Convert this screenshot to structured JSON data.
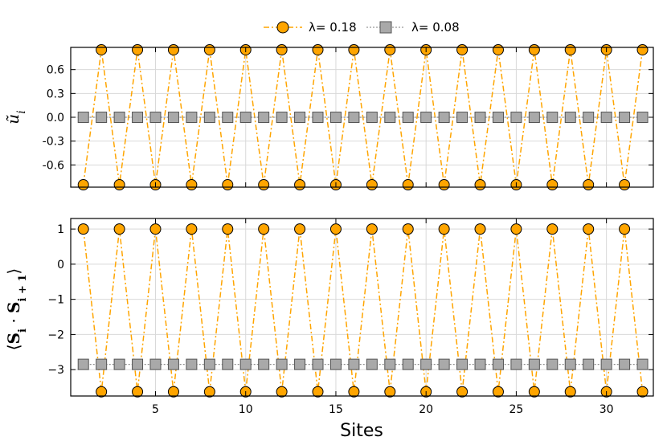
{
  "legend": {
    "entries": [
      {
        "label": "λ= 0.18",
        "color": "#FFA500",
        "marker": "circle",
        "line": "dashdot"
      },
      {
        "label": "λ= 0.08",
        "color": "#A9A9A9",
        "marker": "square",
        "line": "dotted"
      }
    ],
    "placement": "top-center"
  },
  "chart_data": [
    {
      "type": "line",
      "ylabel": "ũ_i",
      "xlabel": "",
      "xlim": [
        0.3,
        32.6
      ],
      "ylim": [
        -0.88,
        0.88
      ],
      "yticks": [
        -0.6,
        -0.3,
        0.0,
        0.3,
        0.6
      ],
      "ytick_labels": [
        "-0.6",
        "-0.3",
        "0.0",
        "0.3",
        "0.6"
      ],
      "xticks": [
        5,
        10,
        15,
        20,
        25,
        30
      ],
      "grid": true,
      "series": [
        {
          "name": "λ= 0.18",
          "color": "#FFA500",
          "marker": "circle",
          "x": [
            1,
            2,
            3,
            4,
            5,
            6,
            7,
            8,
            9,
            10,
            11,
            12,
            13,
            14,
            15,
            16,
            17,
            18,
            19,
            20,
            21,
            22,
            23,
            24,
            25,
            26,
            27,
            28,
            29,
            30,
            31,
            32
          ],
          "values": [
            -0.85,
            0.85,
            -0.85,
            0.85,
            -0.85,
            0.85,
            -0.85,
            0.85,
            -0.85,
            0.85,
            -0.85,
            0.85,
            -0.85,
            0.85,
            -0.85,
            0.85,
            -0.85,
            0.85,
            -0.85,
            0.85,
            -0.85,
            0.85,
            -0.85,
            0.85,
            -0.85,
            0.85,
            -0.85,
            0.85,
            -0.85,
            0.85,
            -0.85,
            0.85
          ]
        },
        {
          "name": "λ= 0.08",
          "color": "#A9A9A9",
          "marker": "square",
          "x": [
            1,
            2,
            3,
            4,
            5,
            6,
            7,
            8,
            9,
            10,
            11,
            12,
            13,
            14,
            15,
            16,
            17,
            18,
            19,
            20,
            21,
            22,
            23,
            24,
            25,
            26,
            27,
            28,
            29,
            30,
            31,
            32
          ],
          "values": [
            0,
            0,
            0,
            0,
            0,
            0,
            0,
            0,
            0,
            0,
            0,
            0,
            0,
            0,
            0,
            0,
            0,
            0,
            0,
            0,
            0,
            0,
            0,
            0,
            0,
            0,
            0,
            0,
            0,
            0,
            0,
            0
          ]
        }
      ]
    },
    {
      "type": "line",
      "ylabel": "⟨S_i · S_i+1⟩",
      "xlabel": "Sites",
      "xlim": [
        0.3,
        32.6
      ],
      "ylim": [
        -3.75,
        1.3
      ],
      "yticks": [
        -3,
        -2,
        -1,
        0,
        1
      ],
      "ytick_labels": [
        "−3",
        "−2",
        "−1",
        "0",
        "1"
      ],
      "xticks": [
        5,
        10,
        15,
        20,
        25,
        30
      ],
      "xtick_labels": [
        "5",
        "10",
        "15",
        "20",
        "25",
        "30"
      ],
      "grid": true,
      "series": [
        {
          "name": "λ= 0.18",
          "color": "#FFA500",
          "marker": "circle",
          "x": [
            1,
            2,
            3,
            4,
            5,
            6,
            7,
            8,
            9,
            10,
            11,
            12,
            13,
            14,
            15,
            16,
            17,
            18,
            19,
            20,
            21,
            22,
            23,
            24,
            25,
            26,
            27,
            28,
            29,
            30,
            31,
            32
          ],
          "values": [
            1.0,
            -3.63,
            1.0,
            -3.63,
            1.0,
            -3.63,
            1.0,
            -3.63,
            1.0,
            -3.63,
            1.0,
            -3.63,
            1.0,
            -3.63,
            1.0,
            -3.63,
            1.0,
            -3.63,
            1.0,
            -3.63,
            1.0,
            -3.63,
            1.0,
            -3.63,
            1.0,
            -3.63,
            1.0,
            -3.63,
            1.0,
            -3.63,
            1.0,
            -3.63
          ]
        },
        {
          "name": "λ= 0.08",
          "color": "#A9A9A9",
          "marker": "square",
          "x": [
            1,
            2,
            3,
            4,
            5,
            6,
            7,
            8,
            9,
            10,
            11,
            12,
            13,
            14,
            15,
            16,
            17,
            18,
            19,
            20,
            21,
            22,
            23,
            24,
            25,
            26,
            27,
            28,
            29,
            30,
            31,
            32
          ],
          "values": [
            -2.85,
            -2.85,
            -2.85,
            -2.85,
            -2.85,
            -2.85,
            -2.85,
            -2.85,
            -2.85,
            -2.85,
            -2.85,
            -2.85,
            -2.85,
            -2.85,
            -2.85,
            -2.85,
            -2.85,
            -2.85,
            -2.85,
            -2.85,
            -2.85,
            -2.85,
            -2.85,
            -2.85,
            -2.85,
            -2.85,
            -2.85,
            -2.85,
            -2.85,
            -2.85,
            -2.85,
            -2.85
          ]
        }
      ]
    }
  ]
}
